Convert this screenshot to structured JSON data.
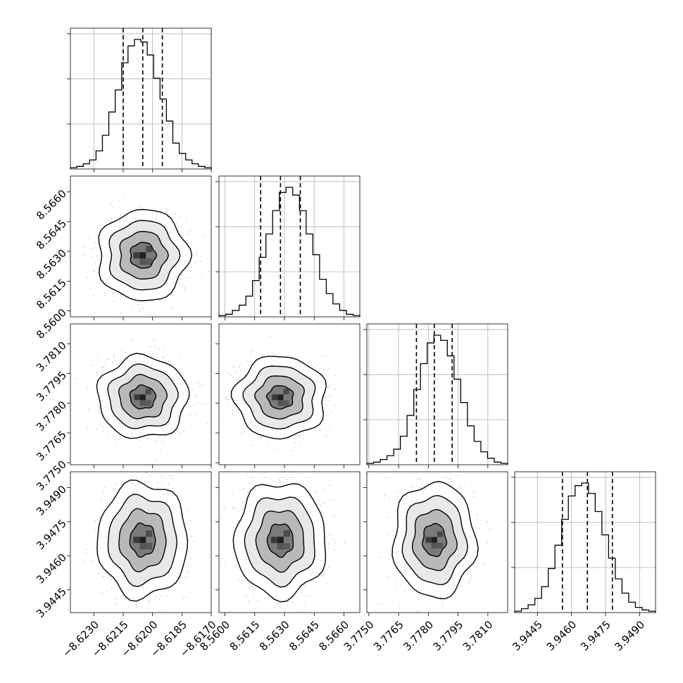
{
  "chart_data": {
    "type": "corner",
    "title": "",
    "parameters": [
      {
        "ticks": [
          -8.623,
          -8.6215,
          -8.62,
          -8.6185,
          -8.617
        ],
        "tick_labels": [
          "−8.6230",
          "−8.6215",
          "−8.6200",
          "−8.6185",
          "−8.6170"
        ],
        "range": [
          -8.6242,
          -8.617
        ],
        "quantiles": [
          -8.6215,
          -8.6205,
          -8.6195
        ],
        "center": -8.6205,
        "hist": [
          1,
          2,
          4,
          7,
          14,
          26,
          44,
          61,
          82,
          95,
          100,
          98,
          88,
          70,
          54,
          37,
          20,
          12,
          7,
          4,
          2,
          1
        ]
      },
      {
        "ticks": [
          8.56,
          8.5615,
          8.563,
          8.5645,
          8.566
        ],
        "tick_labels": [
          "8.5600",
          "8.5615",
          "8.5630",
          "8.5645",
          "8.5660"
        ],
        "range": [
          8.5597,
          8.5668
        ],
        "quantiles": [
          8.5618,
          8.5628,
          8.5638
        ],
        "center": 8.5628,
        "hist": [
          1,
          2,
          5,
          9,
          16,
          28,
          46,
          64,
          82,
          96,
          100,
          94,
          82,
          64,
          48,
          29,
          18,
          10,
          5,
          2,
          1
        ]
      },
      {
        "ticks": [
          3.775,
          3.7765,
          3.778,
          3.7795,
          3.781
        ],
        "tick_labels": [
          "3.7750",
          "3.7765",
          "3.7780",
          "3.7795",
          "3.7810"
        ],
        "range": [
          3.7749,
          3.782
        ],
        "quantiles": [
          3.7774,
          3.7783,
          3.7792
        ],
        "center": 3.7783,
        "hist": [
          1,
          2,
          4,
          7,
          12,
          22,
          38,
          58,
          78,
          94,
          100,
          96,
          84,
          66,
          48,
          30,
          18,
          10,
          5,
          2,
          1
        ]
      },
      {
        "ticks": [
          3.9445,
          3.946,
          3.9475,
          3.949
        ],
        "tick_labels": [
          "3.9445",
          "3.9460",
          "3.9475",
          "3.9490"
        ],
        "range": [
          3.9435,
          3.9497
        ],
        "quantiles": [
          3.9456,
          3.9467,
          3.9478
        ],
        "center": 3.9467,
        "hist": [
          1,
          3,
          6,
          11,
          20,
          34,
          52,
          72,
          90,
          98,
          100,
          92,
          78,
          60,
          42,
          26,
          15,
          8,
          4,
          2,
          1
        ]
      }
    ],
    "grid": true,
    "contour_levels": [
      0.5,
      1.0,
      1.5,
      2.0
    ],
    "colors": {
      "ink": "#000000",
      "grid": "#b0b0b0",
      "scatter": "#9a9a9a"
    }
  }
}
